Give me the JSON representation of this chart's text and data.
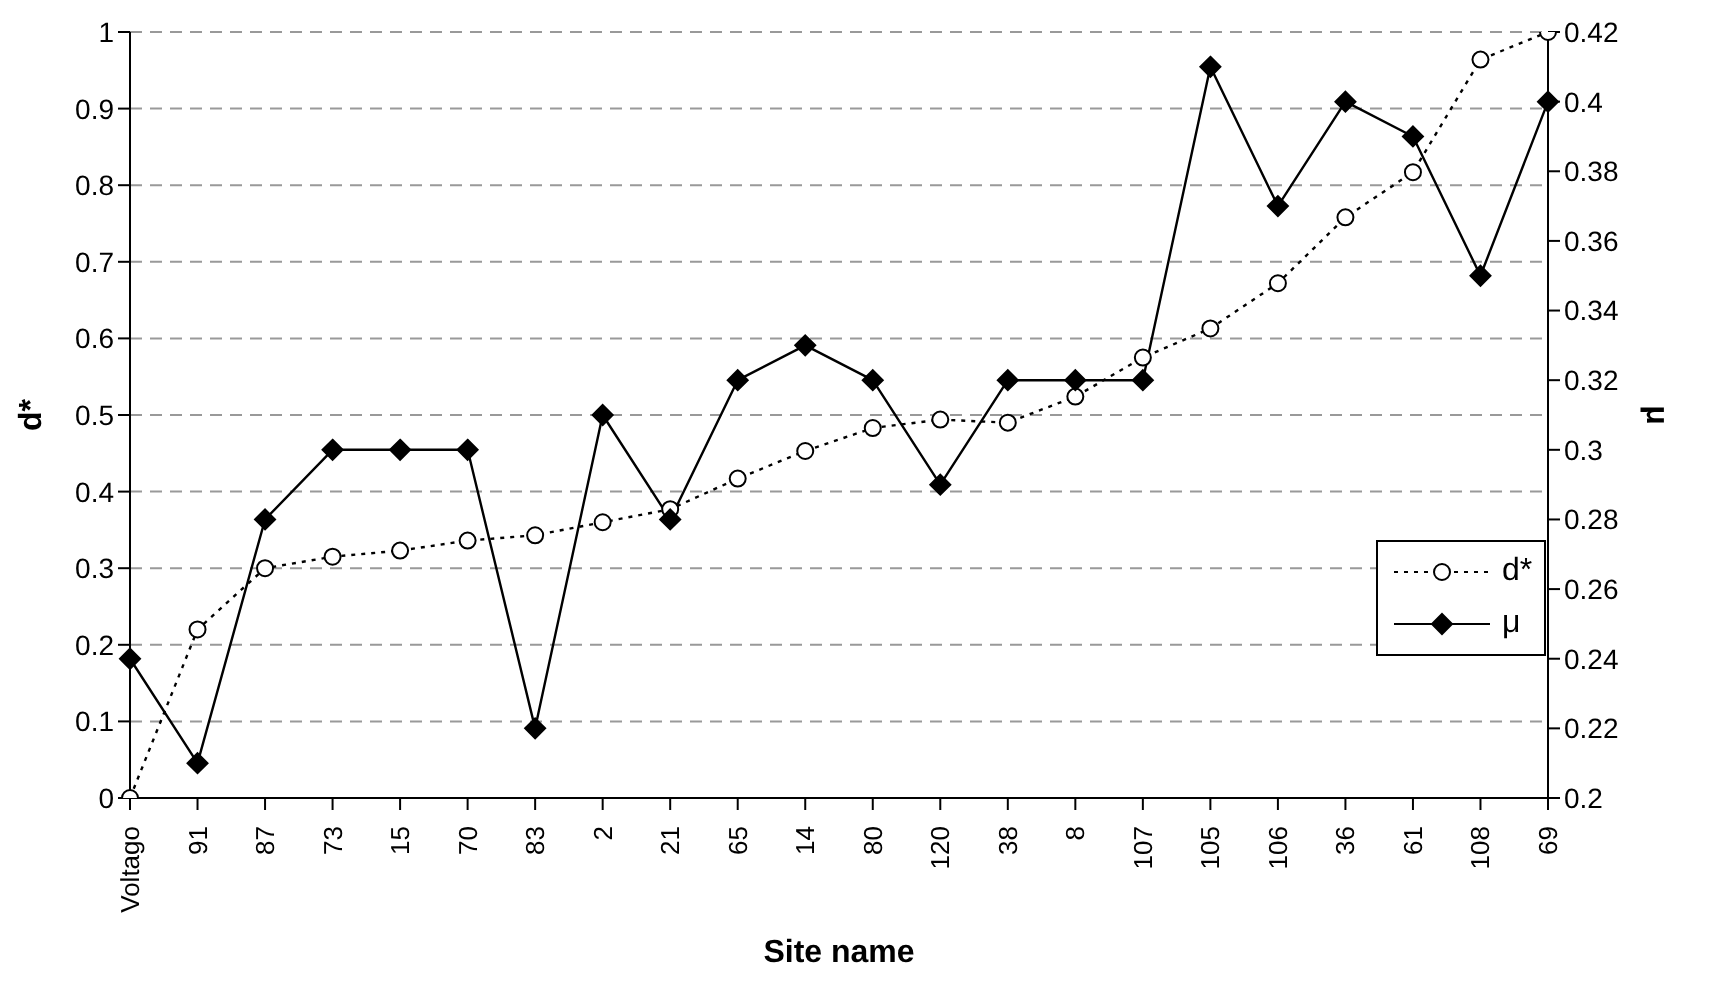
{
  "chart_data": {
    "type": "line",
    "xlabel": "Site name",
    "ylabel": "d*",
    "y2label": "μ",
    "categories": [
      "Voltago",
      "91",
      "87",
      "73",
      "15",
      "70",
      "83",
      "2",
      "21",
      "65",
      "14",
      "80",
      "120",
      "38",
      "8",
      "107",
      "105",
      "106",
      "36",
      "61",
      "108",
      "69"
    ],
    "series": [
      {
        "name": "d*",
        "color": "#000000",
        "marker": "circle",
        "line_style": "dotted",
        "values": [
          0,
          0.22,
          0.3,
          0.315,
          0.323,
          0.336,
          0.343,
          0.36,
          0.377,
          0.417,
          0.453,
          0.483,
          0.494,
          0.49,
          0.524,
          0.575,
          0.613,
          0.672,
          0.758,
          0.817,
          0.964,
          1.0
        ]
      },
      {
        "name": "μ",
        "color": "#000000",
        "marker": "diamond",
        "line_style": "solid",
        "axis": "y2",
        "values": [
          0.24,
          0.21,
          0.28,
          0.3,
          0.3,
          0.3,
          0.22,
          0.31,
          0.28,
          0.32,
          0.33,
          0.32,
          0.29,
          0.32,
          0.32,
          0.32,
          0.41,
          0.37,
          0.4,
          0.39,
          0.35,
          0.4
        ]
      }
    ],
    "ylim": [
      0,
      1
    ],
    "yticks": [
      0,
      0.1,
      0.2,
      0.3,
      0.4,
      0.5,
      0.6,
      0.7,
      0.8,
      0.9,
      1
    ],
    "y2lim": [
      0.2,
      0.42
    ],
    "y2ticks": [
      0.2,
      0.22,
      0.24,
      0.26,
      0.28,
      0.3,
      0.32,
      0.34,
      0.36,
      0.38,
      0.4,
      0.42
    ],
    "grid": "y",
    "legend": "bottom right"
  }
}
